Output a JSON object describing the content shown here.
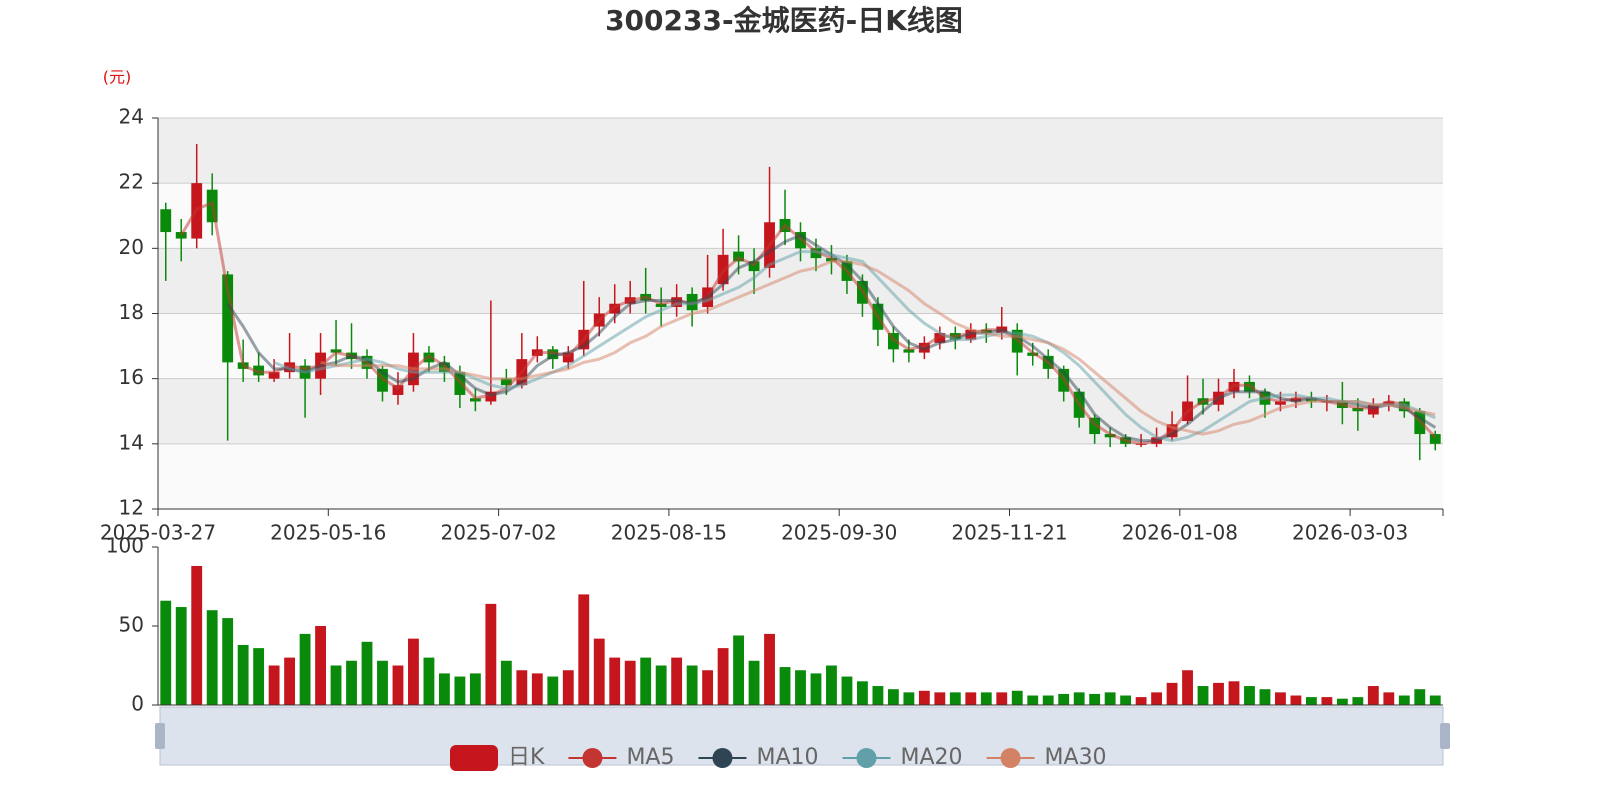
{
  "chart_data": [
    {
      "type": "candlestick",
      "title": "300233-金城医药-日K线图",
      "y_unit": "(元)",
      "categories": [
        "2025-03-27",
        null,
        null,
        null,
        null,
        null,
        null,
        null,
        null,
        null,
        null,
        "2025-05-16",
        null,
        null,
        null,
        null,
        null,
        null,
        null,
        null,
        null,
        null,
        "2025-07-02",
        null,
        null,
        null,
        null,
        null,
        null,
        null,
        null,
        null,
        null,
        "2025-08-15",
        null,
        null,
        null,
        null,
        null,
        null,
        null,
        null,
        null,
        null,
        "2025-09-30",
        null,
        null,
        null,
        null,
        null,
        null,
        null,
        null,
        null,
        null,
        "2025-11-21",
        null,
        null,
        null,
        null,
        null,
        null,
        null,
        null,
        null,
        null,
        "2026-01-08",
        null,
        null,
        null,
        null,
        null,
        null,
        null,
        null,
        null,
        null,
        "2026-03-03",
        null,
        null,
        null,
        null,
        null
      ],
      "ylim": [
        12,
        24
      ],
      "yticks": [
        12,
        14,
        16,
        18,
        20,
        22,
        24
      ],
      "grid": true,
      "split_area": true,
      "series": [
        {
          "name": "日K",
          "color": "#c4161c",
          "down_color": "#0a8a0a",
          "values": [
            [
              21.2,
              20.5,
              19.0,
              21.4
            ],
            [
              20.5,
              20.3,
              19.6,
              20.9
            ],
            [
              20.3,
              22.0,
              20.0,
              23.2
            ],
            [
              21.8,
              20.8,
              20.4,
              22.3
            ],
            [
              19.2,
              16.5,
              14.1,
              19.3
            ],
            [
              16.5,
              16.3,
              15.9,
              17.2
            ],
            [
              16.4,
              16.1,
              15.9,
              16.8
            ],
            [
              16.0,
              16.2,
              15.9,
              16.6
            ],
            [
              16.2,
              16.5,
              16.0,
              17.4
            ],
            [
              16.4,
              16.0,
              14.8,
              16.6
            ],
            [
              16.0,
              16.8,
              15.5,
              17.4
            ],
            [
              16.9,
              16.8,
              16.4,
              17.8
            ],
            [
              16.8,
              16.6,
              16.3,
              17.7
            ],
            [
              16.7,
              16.3,
              16.0,
              16.9
            ],
            [
              16.3,
              15.6,
              15.3,
              16.4
            ],
            [
              15.5,
              15.8,
              15.2,
              16.2
            ],
            [
              15.8,
              16.8,
              15.6,
              17.4
            ],
            [
              16.8,
              16.5,
              16.2,
              17.0
            ],
            [
              16.5,
              16.2,
              15.9,
              16.7
            ],
            [
              16.2,
              15.5,
              15.1,
              16.4
            ],
            [
              15.4,
              15.3,
              15.0,
              15.7
            ],
            [
              15.3,
              15.6,
              15.2,
              18.4
            ],
            [
              16.0,
              15.8,
              15.5,
              16.3
            ],
            [
              15.8,
              16.6,
              15.7,
              17.4
            ],
            [
              16.7,
              16.9,
              16.5,
              17.3
            ],
            [
              16.9,
              16.6,
              16.3,
              17.0
            ],
            [
              16.5,
              16.8,
              16.3,
              17.0
            ],
            [
              16.9,
              17.5,
              16.7,
              19.0
            ],
            [
              17.6,
              18.0,
              17.3,
              18.5
            ],
            [
              18.0,
              18.3,
              17.7,
              18.9
            ],
            [
              18.3,
              18.5,
              18.0,
              19.0
            ],
            [
              18.6,
              18.4,
              18.0,
              19.4
            ],
            [
              18.3,
              18.2,
              17.6,
              18.8
            ],
            [
              18.2,
              18.5,
              17.9,
              18.9
            ],
            [
              18.6,
              18.1,
              17.6,
              18.8
            ],
            [
              18.2,
              18.8,
              18.0,
              19.8
            ],
            [
              18.9,
              19.8,
              18.7,
              20.6
            ],
            [
              19.9,
              19.6,
              19.2,
              20.4
            ],
            [
              19.6,
              19.3,
              18.6,
              20.0
            ],
            [
              19.4,
              20.8,
              19.1,
              22.5
            ],
            [
              20.9,
              20.5,
              20.1,
              21.8
            ],
            [
              20.5,
              20.0,
              19.6,
              20.8
            ],
            [
              20.0,
              19.7,
              19.3,
              20.3
            ],
            [
              19.7,
              19.6,
              19.2,
              20.1
            ],
            [
              19.6,
              19.0,
              18.6,
              19.8
            ],
            [
              19.0,
              18.3,
              17.9,
              19.2
            ],
            [
              18.3,
              17.5,
              17.0,
              18.5
            ],
            [
              17.4,
              16.9,
              16.5,
              17.6
            ],
            [
              16.9,
              16.8,
              16.5,
              17.2
            ],
            [
              16.8,
              17.1,
              16.6,
              17.3
            ],
            [
              17.1,
              17.4,
              16.9,
              17.6
            ],
            [
              17.4,
              17.2,
              16.9,
              17.6
            ],
            [
              17.2,
              17.5,
              17.1,
              17.7
            ],
            [
              17.5,
              17.4,
              17.1,
              17.7
            ],
            [
              17.4,
              17.6,
              17.2,
              18.2
            ],
            [
              17.5,
              16.8,
              16.1,
              17.7
            ],
            [
              16.8,
              16.7,
              16.4,
              17.1
            ],
            [
              16.7,
              16.3,
              16.0,
              16.9
            ],
            [
              16.3,
              15.6,
              15.3,
              16.4
            ],
            [
              15.6,
              14.8,
              14.5,
              15.7
            ],
            [
              14.8,
              14.3,
              14.0,
              14.9
            ],
            [
              14.3,
              14.2,
              13.9,
              14.5
            ],
            [
              14.2,
              14.0,
              13.9,
              14.3
            ],
            [
              14.0,
              14.0,
              13.9,
              14.3
            ],
            [
              14.0,
              14.2,
              13.9,
              14.5
            ],
            [
              14.2,
              14.6,
              14.1,
              15.0
            ],
            [
              14.7,
              15.3,
              14.6,
              16.1
            ],
            [
              15.4,
              15.2,
              14.9,
              16.0
            ],
            [
              15.2,
              15.6,
              15.0,
              16.0
            ],
            [
              15.6,
              15.9,
              15.4,
              16.3
            ],
            [
              15.9,
              15.6,
              15.4,
              16.1
            ],
            [
              15.6,
              15.2,
              14.8,
              15.7
            ],
            [
              15.2,
              15.3,
              15.0,
              15.6
            ],
            [
              15.3,
              15.4,
              15.1,
              15.6
            ],
            [
              15.4,
              15.3,
              15.1,
              15.6
            ],
            [
              15.3,
              15.3,
              15.0,
              15.5
            ],
            [
              15.3,
              15.1,
              14.6,
              15.9
            ],
            [
              15.1,
              15.0,
              14.4,
              15.4
            ],
            [
              14.9,
              15.2,
              14.8,
              15.4
            ],
            [
              15.2,
              15.3,
              15.0,
              15.5
            ],
            [
              15.3,
              15.0,
              14.8,
              15.4
            ],
            [
              15.0,
              14.3,
              13.5,
              15.1
            ],
            [
              14.3,
              14.0,
              13.8,
              14.4
            ]
          ]
        },
        {
          "name": "MA5",
          "color": "#c23531",
          "values": [
            null,
            20.4,
            21.2,
            21.4,
            18.7,
            16.4,
            16.2,
            16.2,
            16.4,
            16.3,
            16.4,
            16.8,
            16.7,
            16.5,
            16.0,
            15.7,
            16.3,
            16.7,
            16.4,
            15.9,
            15.4,
            15.5,
            15.7,
            16.2,
            16.8,
            16.8,
            16.7,
            17.2,
            17.8,
            18.2,
            18.4,
            18.5,
            18.3,
            18.4,
            18.3,
            18.5,
            19.3,
            19.7,
            19.5,
            20.1,
            20.7,
            20.3,
            19.9,
            19.7,
            19.3,
            18.7,
            17.9,
            17.2,
            16.9,
            17.0,
            17.3,
            17.3,
            17.4,
            17.5,
            17.5,
            17.2,
            16.8,
            16.5,
            16.0,
            15.2,
            14.6,
            14.3,
            14.1,
            14.0,
            14.1,
            14.4,
            15.0,
            15.3,
            15.4,
            15.8,
            15.8,
            15.4,
            15.3,
            15.4,
            15.4,
            15.3,
            15.2,
            15.1,
            15.1,
            15.3,
            15.2,
            14.7,
            14.2
          ]
        },
        {
          "name": "MA10",
          "color": "#2f4554",
          "values": [
            null,
            null,
            null,
            null,
            18.3,
            17.6,
            16.8,
            16.3,
            16.3,
            16.2,
            16.4,
            16.5,
            16.7,
            16.6,
            16.2,
            15.9,
            16.0,
            16.3,
            16.5,
            16.1,
            15.7,
            15.5,
            15.6,
            15.9,
            16.4,
            16.7,
            16.8,
            17.0,
            17.4,
            17.9,
            18.3,
            18.4,
            18.4,
            18.4,
            18.3,
            18.5,
            18.9,
            19.4,
            19.6,
            19.9,
            20.2,
            20.4,
            20.1,
            19.8,
            19.5,
            19.0,
            18.3,
            17.6,
            17.1,
            16.9,
            17.1,
            17.2,
            17.4,
            17.4,
            17.5,
            17.3,
            17.0,
            16.6,
            16.2,
            15.6,
            14.9,
            14.5,
            14.2,
            14.1,
            14.1,
            14.3,
            14.6,
            15.0,
            15.4,
            15.6,
            15.6,
            15.6,
            15.4,
            15.3,
            15.4,
            15.3,
            15.3,
            15.2,
            15.1,
            15.2,
            15.1,
            14.8,
            14.5
          ]
        },
        {
          "name": "MA20",
          "color": "#61a0a8",
          "values": [
            null,
            null,
            null,
            null,
            null,
            null,
            null,
            16.5,
            16.3,
            16.2,
            16.3,
            16.4,
            16.5,
            16.6,
            16.5,
            16.3,
            16.2,
            16.2,
            16.2,
            16.2,
            16.0,
            15.8,
            15.7,
            15.8,
            16.0,
            16.2,
            16.4,
            16.7,
            17.0,
            17.3,
            17.6,
            17.9,
            18.1,
            18.3,
            18.3,
            18.4,
            18.6,
            18.8,
            19.1,
            19.5,
            19.7,
            19.9,
            19.9,
            19.8,
            19.7,
            19.6,
            19.1,
            18.6,
            18.1,
            17.7,
            17.4,
            17.2,
            17.2,
            17.3,
            17.4,
            17.4,
            17.3,
            17.1,
            16.8,
            16.4,
            15.9,
            15.4,
            14.9,
            14.5,
            14.2,
            14.1,
            14.2,
            14.4,
            14.7,
            15.0,
            15.3,
            15.4,
            15.5,
            15.5,
            15.4,
            15.4,
            15.3,
            15.3,
            15.2,
            15.2,
            15.2,
            15.0,
            14.8
          ]
        },
        {
          "name": "MA30",
          "color": "#d48265",
          "values": [
            null,
            null,
            null,
            null,
            null,
            null,
            null,
            null,
            null,
            null,
            16.5,
            16.4,
            16.4,
            16.4,
            16.4,
            16.4,
            16.3,
            16.3,
            16.3,
            16.2,
            16.1,
            16.0,
            16.0,
            16.0,
            16.1,
            16.2,
            16.3,
            16.5,
            16.6,
            16.8,
            17.1,
            17.3,
            17.6,
            17.8,
            18.0,
            18.1,
            18.3,
            18.5,
            18.7,
            18.9,
            19.1,
            19.3,
            19.4,
            19.6,
            19.6,
            19.5,
            19.3,
            19.0,
            18.7,
            18.3,
            18.0,
            17.7,
            17.5,
            17.4,
            17.3,
            17.3,
            17.2,
            17.1,
            16.9,
            16.6,
            16.2,
            15.8,
            15.4,
            15.0,
            14.7,
            14.5,
            14.4,
            14.3,
            14.4,
            14.6,
            14.7,
            14.9,
            15.1,
            15.2,
            15.3,
            15.3,
            15.3,
            15.3,
            15.2,
            15.2,
            15.1,
            15.0,
            14.9
          ]
        }
      ]
    },
    {
      "type": "bar",
      "ylim": [
        0,
        100
      ],
      "yticks": [
        0,
        50,
        100
      ],
      "values": [
        66,
        62,
        88,
        60,
        55,
        38,
        36,
        25,
        30,
        45,
        50,
        25,
        28,
        40,
        28,
        25,
        42,
        30,
        20,
        18,
        20,
        64,
        28,
        22,
        20,
        18,
        22,
        70,
        42,
        30,
        28,
        30,
        25,
        30,
        25,
        22,
        36,
        44,
        28,
        45,
        24,
        22,
        20,
        25,
        18,
        15,
        12,
        10,
        8,
        9,
        8,
        8,
        8,
        8,
        8,
        9,
        6,
        6,
        7,
        8,
        7,
        8,
        6,
        5,
        8,
        14,
        22,
        12,
        14,
        15,
        12,
        10,
        8,
        6,
        5,
        5,
        4,
        5,
        12,
        8,
        6,
        10,
        6
      ]
    }
  ]
}
